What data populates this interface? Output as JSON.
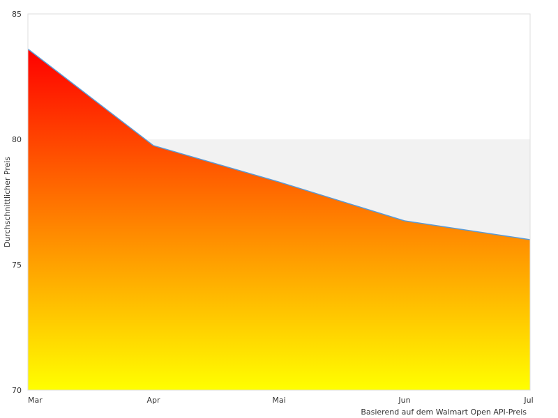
{
  "chart_data": {
    "type": "area",
    "x": [
      "Mar",
      "Apr",
      "Mai",
      "Jun",
      "Jul"
    ],
    "series": [
      {
        "values": [
          83.6,
          79.75,
          78.3,
          76.75,
          76.0
        ]
      }
    ],
    "ylabel": "Durchschnittlicher Preis",
    "ylim": [
      70,
      85
    ],
    "yticks": [
      70,
      75,
      80,
      85
    ],
    "note": "Basierend auf dem Walmart Open API-Preis",
    "highlight_band": [
      76,
      80
    ],
    "grid": false,
    "colors": {
      "gradient_top": "#ff0000",
      "gradient_mid": "#ff8000",
      "gradient_bottom": "#ffff00",
      "line": "#5b9bd5",
      "band": "#f2f2f2",
      "frame": "#dddddd"
    }
  }
}
